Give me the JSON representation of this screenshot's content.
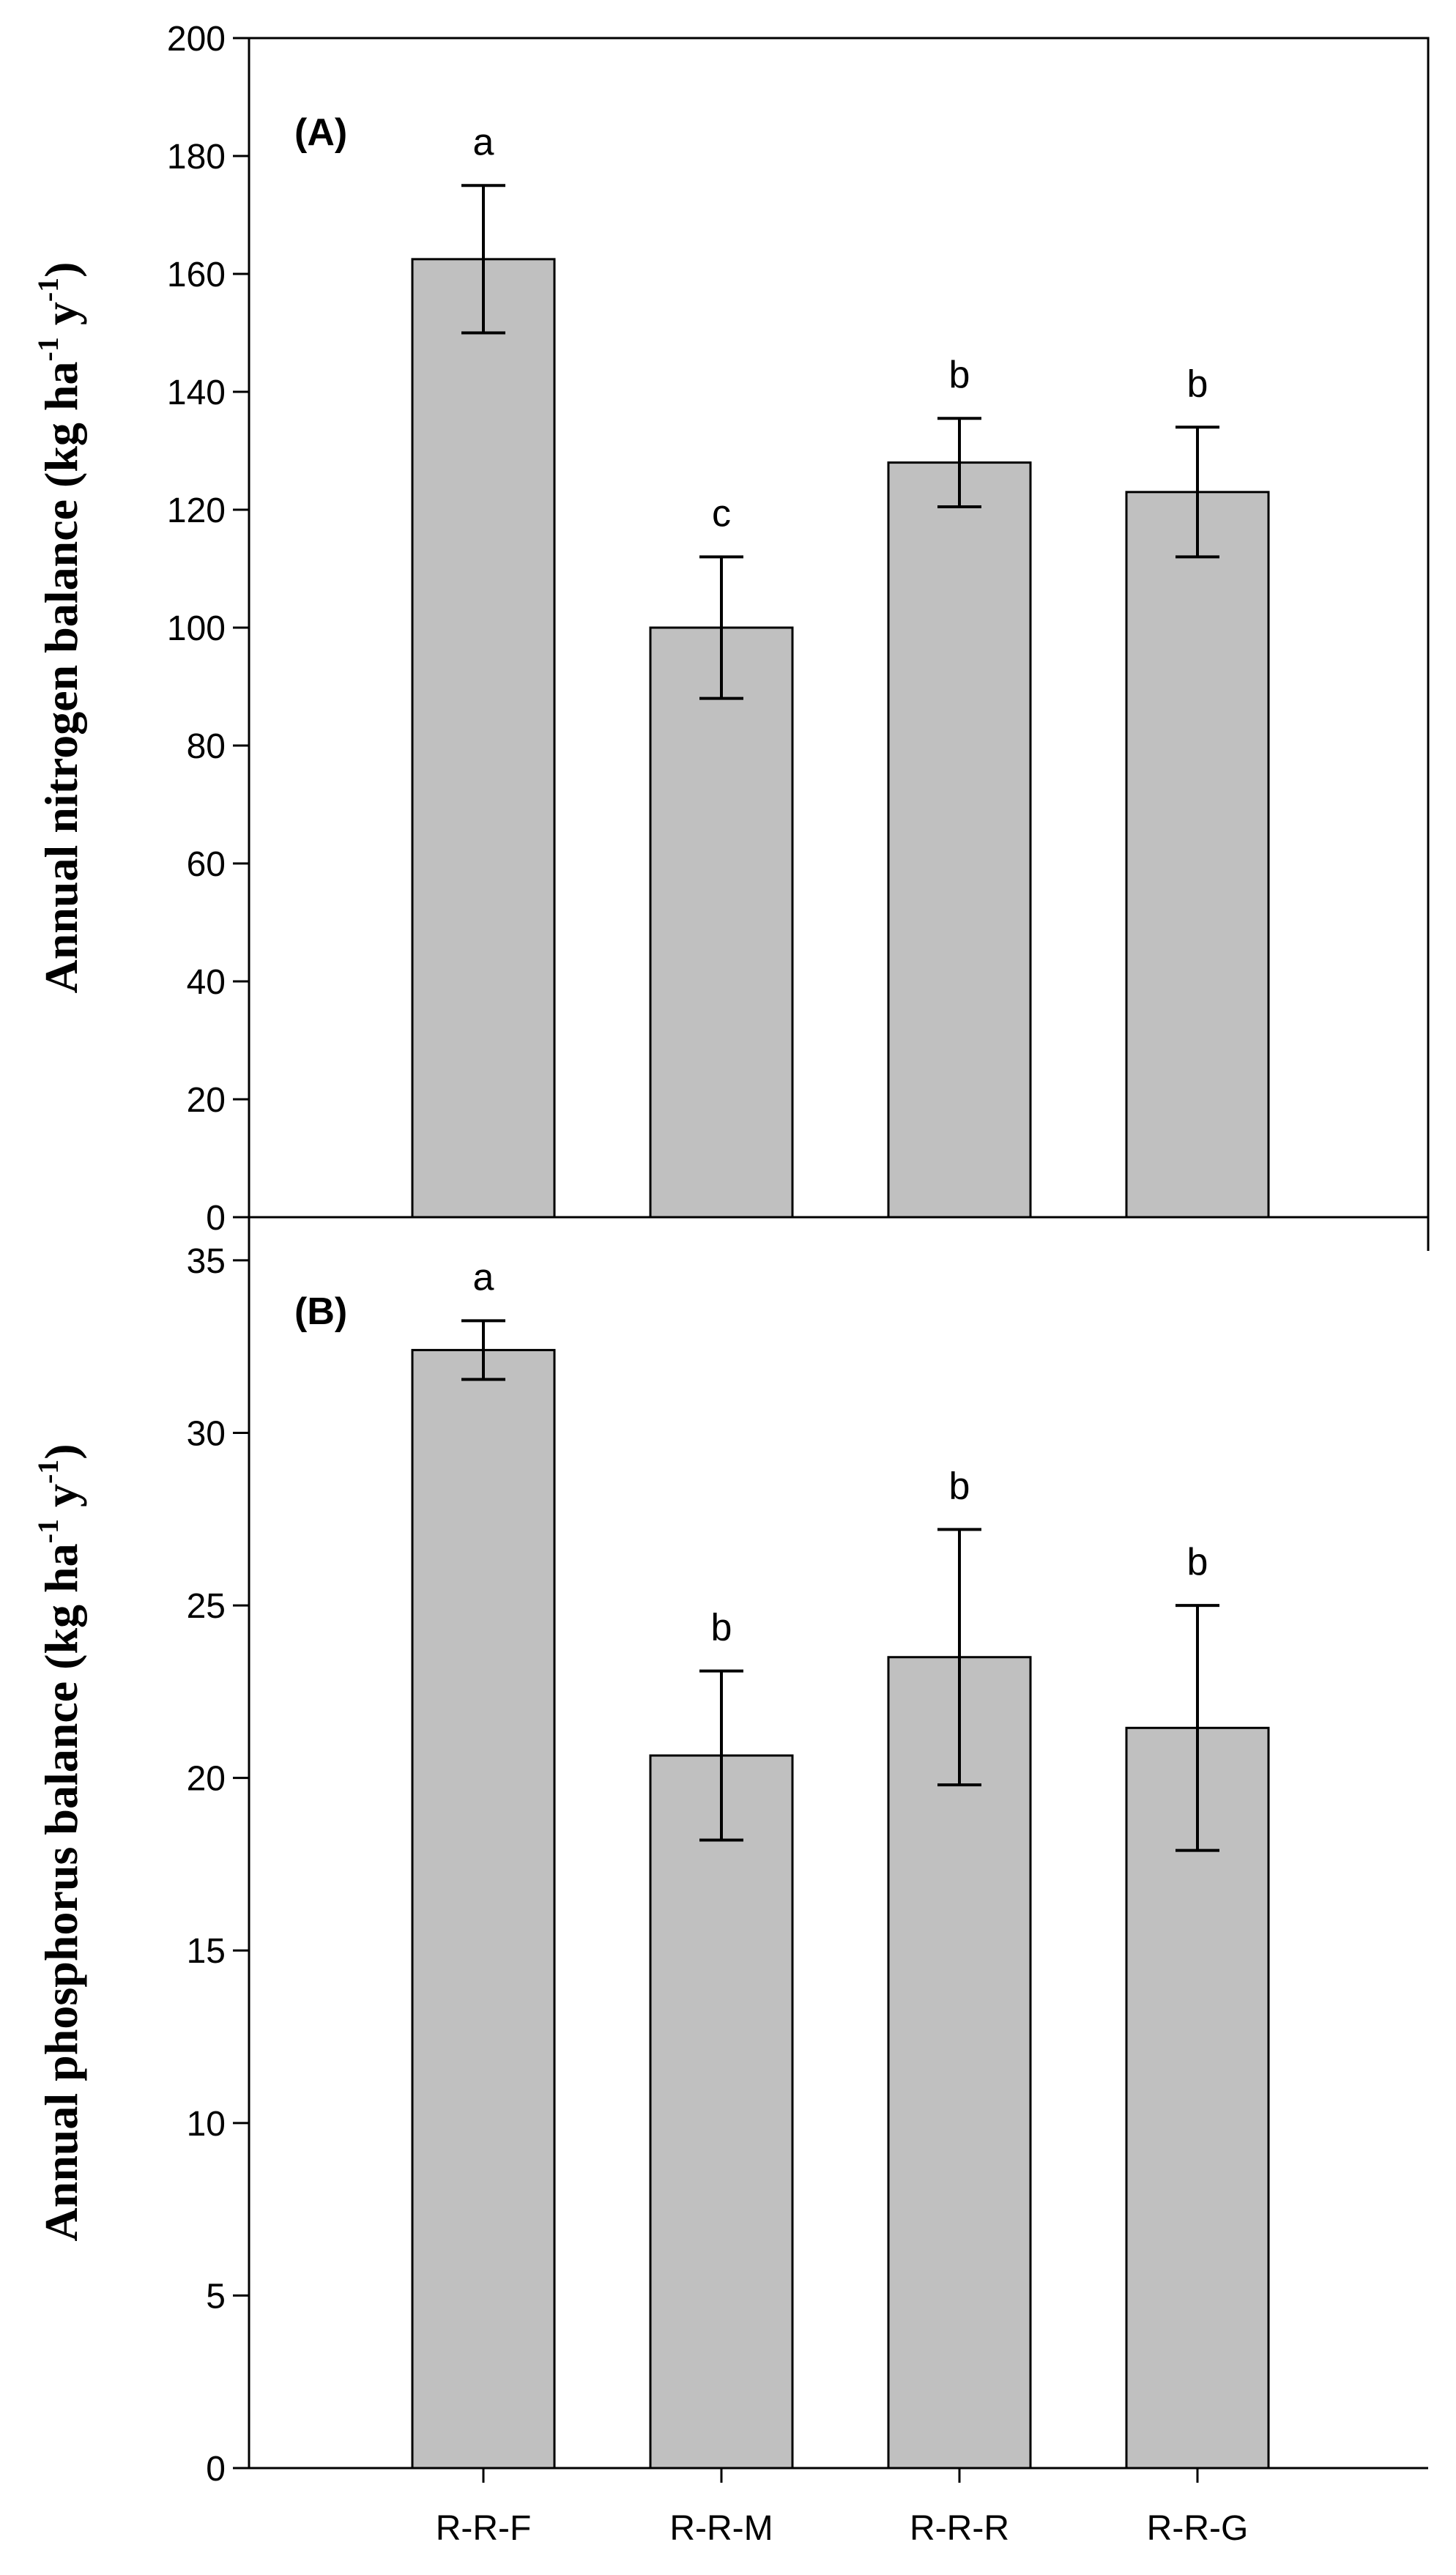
{
  "chart_data": [
    {
      "type": "bar",
      "panel_label": "(A)",
      "title": "",
      "xlabel": "",
      "ylabel_parts": [
        "Annual nitrogen balance (kg ha",
        "-1",
        " y",
        "-1",
        ")"
      ],
      "ylim": [
        0,
        200
      ],
      "yticks": [
        "0",
        "20",
        "40",
        "60",
        "80",
        "100",
        "120",
        "140",
        "160",
        "180",
        "200"
      ],
      "categories": [
        "R-R-F",
        "R-R-M",
        "R-R-R",
        "R-R-G"
      ],
      "values": [
        162.5,
        100.0,
        128.0,
        123.0
      ],
      "error_low": [
        150.0,
        88.0,
        120.5,
        112.0
      ],
      "error_high": [
        175.0,
        112.0,
        135.5,
        134.0
      ],
      "significance_letters": [
        "a",
        "c",
        "b",
        "b"
      ]
    },
    {
      "type": "bar",
      "panel_label": "(B)",
      "title": "",
      "xlabel": "",
      "ylabel_parts": [
        "Annual phosphorus balance (kg ha",
        "-1",
        " y",
        "-1",
        ")"
      ],
      "ylim": [
        0,
        36.25
      ],
      "yticks": [
        "0",
        "5",
        "10",
        "15",
        "20",
        "25",
        "30",
        "35"
      ],
      "categories": [
        "R-R-F",
        "R-R-M",
        "R-R-R",
        "R-R-G"
      ],
      "values": [
        32.4,
        20.65,
        23.5,
        21.45
      ],
      "error_low": [
        31.55,
        18.2,
        19.8,
        17.9
      ],
      "error_high": [
        33.25,
        23.1,
        27.2,
        25.0
      ],
      "significance_letters": [
        "a",
        "b",
        "b",
        "b"
      ]
    }
  ]
}
